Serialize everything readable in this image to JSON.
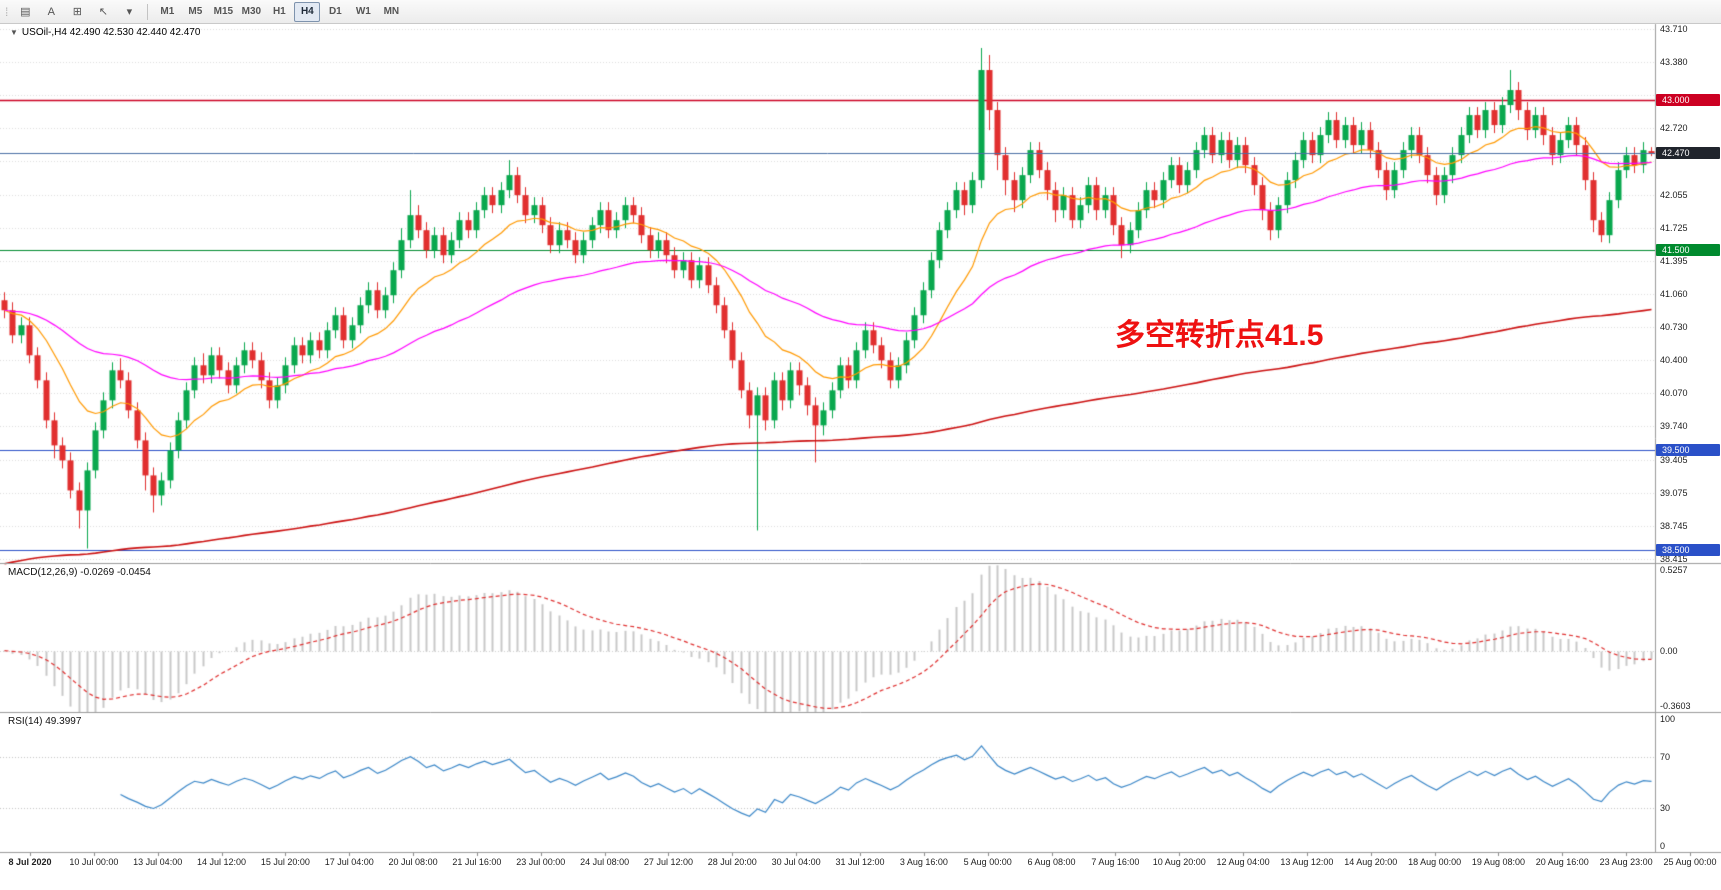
{
  "toolbar": {
    "grip_icon": "⁞",
    "tool_buttons": [
      {
        "name": "chart-type-icon",
        "glyph": "▤"
      },
      {
        "name": "text-annotation-icon",
        "glyph": "A"
      },
      {
        "name": "object-frame-icon",
        "glyph": "⊞"
      },
      {
        "name": "cursor-tool-icon",
        "glyph": "↖"
      },
      {
        "name": "tools-dropdown-icon",
        "glyph": "▾"
      }
    ],
    "timeframes": [
      {
        "label": "M1",
        "active": false
      },
      {
        "label": "M5",
        "active": false
      },
      {
        "label": "M15",
        "active": false
      },
      {
        "label": "M30",
        "active": false
      },
      {
        "label": "H1",
        "active": false
      },
      {
        "label": "H4",
        "active": true
      },
      {
        "label": "D1",
        "active": false
      },
      {
        "label": "W1",
        "active": false
      },
      {
        "label": "MN",
        "active": false
      }
    ]
  },
  "chart": {
    "collapse_arrow": "▼",
    "symbol_header": "USOil-,H4 42.490 42.530 42.440 42.470",
    "annotation": {
      "text": "多空转折点41.5",
      "color": "#ee1111"
    },
    "colors": {
      "bull": "#09a84e",
      "bear": "#e12f2f",
      "ma_fast": "#ff9900",
      "ma_mid": "#ff00ff",
      "ma_slow": "#cc1111",
      "grid": "#dcdcdc",
      "panel_border": "#9a9a9a",
      "axis_text": "#1c1c1c"
    },
    "y_axis": {
      "min": 38.375,
      "max": 43.76,
      "decimals": 3,
      "grid_ticks": [
        43.71,
        43.38,
        43.05,
        42.72,
        42.39,
        42.055,
        41.725,
        41.395,
        41.06,
        40.73,
        40.4,
        40.07,
        39.74,
        39.405,
        39.075,
        38.745,
        38.415
      ]
    },
    "hlines": [
      {
        "value": 43.0,
        "label": "43.000",
        "color": "#cc0022"
      },
      {
        "value": 41.5,
        "label": "41.500",
        "color": "#008a2e"
      },
      {
        "value": 39.5,
        "label": "39.500",
        "color": "#2a50c8"
      },
      {
        "value": 38.5,
        "label": "38.500",
        "color": "#2a50c8"
      }
    ],
    "current_price": {
      "value": 42.47,
      "label": "42.470",
      "line_color": "#4a6fa5",
      "badge_color": "#20242c"
    }
  },
  "chart_data": {
    "type": "candlestick",
    "symbol": "USOil-",
    "timeframe": "H4",
    "ohlc_readout": {
      "open": "42.490",
      "high": "42.530",
      "low": "42.440",
      "close": "42.470"
    },
    "overlays": [
      {
        "name": "ma-fast",
        "method": "ema",
        "period": 14,
        "color_key": "ma_fast"
      },
      {
        "name": "ma-mid",
        "method": "ema",
        "period": 50,
        "color_key": "ma_mid"
      },
      {
        "name": "ma-slow",
        "method": "ema_seeded",
        "alpha": 0.007,
        "seed": 38.35,
        "color_key": "ma_slow"
      }
    ],
    "candles": [
      [
        41.0,
        41.08,
        40.82,
        40.9
      ],
      [
        40.9,
        40.98,
        40.57,
        40.65
      ],
      [
        40.65,
        40.83,
        40.57,
        40.75
      ],
      [
        40.75,
        40.83,
        40.37,
        40.45
      ],
      [
        40.45,
        40.53,
        40.12,
        40.2
      ],
      [
        40.2,
        40.28,
        39.72,
        39.8
      ],
      [
        39.8,
        39.88,
        39.42,
        39.55
      ],
      [
        39.55,
        39.63,
        39.32,
        39.4
      ],
      [
        39.4,
        39.48,
        39.02,
        39.1
      ],
      [
        39.1,
        39.18,
        38.72,
        38.9
      ],
      [
        38.9,
        39.38,
        38.52,
        39.3
      ],
      [
        39.3,
        39.78,
        39.22,
        39.7
      ],
      [
        39.7,
        40.08,
        39.62,
        40.0
      ],
      [
        40.0,
        40.38,
        39.92,
        40.3
      ],
      [
        40.3,
        40.42,
        40.12,
        40.2
      ],
      [
        40.2,
        40.28,
        39.82,
        39.9
      ],
      [
        39.9,
        39.98,
        39.52,
        39.6
      ],
      [
        39.6,
        39.68,
        39.1,
        39.25
      ],
      [
        39.25,
        39.33,
        38.88,
        39.05
      ],
      [
        39.05,
        39.28,
        38.95,
        39.2
      ],
      [
        39.2,
        39.58,
        39.12,
        39.5
      ],
      [
        39.5,
        39.88,
        39.42,
        39.8
      ],
      [
        39.8,
        40.18,
        39.72,
        40.1
      ],
      [
        40.1,
        40.43,
        40.02,
        40.35
      ],
      [
        40.35,
        40.47,
        40.17,
        40.25
      ],
      [
        40.25,
        40.53,
        40.17,
        40.45
      ],
      [
        40.45,
        40.53,
        40.22,
        40.3
      ],
      [
        40.3,
        40.38,
        40.07,
        40.15
      ],
      [
        40.15,
        40.43,
        40.07,
        40.35
      ],
      [
        40.35,
        40.58,
        40.27,
        40.5
      ],
      [
        40.5,
        40.58,
        40.32,
        40.4
      ],
      [
        40.4,
        40.48,
        40.12,
        40.2
      ],
      [
        40.2,
        40.28,
        39.92,
        40.0
      ],
      [
        40.0,
        40.23,
        39.92,
        40.15
      ],
      [
        40.15,
        40.43,
        40.07,
        40.35
      ],
      [
        40.35,
        40.63,
        40.27,
        40.55
      ],
      [
        40.55,
        40.63,
        40.37,
        40.45
      ],
      [
        40.45,
        40.68,
        40.37,
        40.6
      ],
      [
        40.6,
        40.68,
        40.42,
        40.5
      ],
      [
        40.5,
        40.78,
        40.42,
        40.7
      ],
      [
        40.7,
        40.93,
        40.62,
        40.85
      ],
      [
        40.85,
        40.93,
        40.52,
        40.6
      ],
      [
        40.6,
        40.83,
        40.52,
        40.75
      ],
      [
        40.75,
        41.03,
        40.67,
        40.95
      ],
      [
        40.95,
        41.18,
        40.87,
        41.1
      ],
      [
        41.1,
        41.18,
        40.82,
        40.9
      ],
      [
        40.9,
        41.13,
        40.82,
        41.05
      ],
      [
        41.05,
        41.38,
        40.97,
        41.3
      ],
      [
        41.3,
        41.72,
        41.22,
        41.6
      ],
      [
        41.6,
        42.1,
        41.52,
        41.85
      ],
      [
        41.85,
        41.95,
        41.62,
        41.7
      ],
      [
        41.7,
        41.78,
        41.42,
        41.5
      ],
      [
        41.5,
        41.73,
        41.42,
        41.65
      ],
      [
        41.65,
        41.73,
        41.37,
        41.45
      ],
      [
        41.45,
        41.68,
        41.37,
        41.6
      ],
      [
        41.6,
        41.88,
        41.52,
        41.8
      ],
      [
        41.8,
        41.88,
        41.62,
        41.7
      ],
      [
        41.7,
        41.98,
        41.62,
        41.9
      ],
      [
        41.9,
        42.13,
        41.82,
        42.05
      ],
      [
        42.05,
        42.13,
        41.87,
        41.95
      ],
      [
        41.95,
        42.18,
        41.87,
        42.1
      ],
      [
        42.1,
        42.4,
        42.02,
        42.25
      ],
      [
        42.25,
        42.33,
        41.97,
        42.05
      ],
      [
        42.05,
        42.13,
        41.77,
        41.85
      ],
      [
        41.85,
        42.03,
        41.77,
        41.95
      ],
      [
        41.95,
        42.03,
        41.67,
        41.75
      ],
      [
        41.75,
        41.83,
        41.47,
        41.55
      ],
      [
        41.55,
        41.78,
        41.47,
        41.7
      ],
      [
        41.7,
        41.78,
        41.52,
        41.6
      ],
      [
        41.6,
        41.68,
        41.37,
        41.45
      ],
      [
        41.45,
        41.68,
        41.37,
        41.6
      ],
      [
        41.6,
        41.83,
        41.52,
        41.75
      ],
      [
        41.75,
        41.98,
        41.67,
        41.9
      ],
      [
        41.9,
        41.98,
        41.62,
        41.7
      ],
      [
        41.7,
        41.88,
        41.62,
        41.8
      ],
      [
        41.8,
        42.03,
        41.72,
        41.95
      ],
      [
        41.95,
        42.03,
        41.77,
        41.85
      ],
      [
        41.85,
        41.93,
        41.57,
        41.65
      ],
      [
        41.65,
        41.73,
        41.42,
        41.5
      ],
      [
        41.5,
        41.68,
        41.42,
        41.6
      ],
      [
        41.6,
        41.68,
        41.37,
        41.45
      ],
      [
        41.45,
        41.53,
        41.22,
        41.3
      ],
      [
        41.3,
        41.48,
        41.22,
        41.4
      ],
      [
        41.4,
        41.48,
        41.12,
        41.2
      ],
      [
        41.2,
        41.43,
        41.12,
        41.35
      ],
      [
        41.35,
        41.43,
        41.07,
        41.15
      ],
      [
        41.15,
        41.23,
        40.87,
        40.95
      ],
      [
        40.95,
        41.03,
        40.62,
        40.7
      ],
      [
        40.7,
        40.78,
        40.32,
        40.4
      ],
      [
        40.4,
        40.48,
        40.02,
        40.1
      ],
      [
        40.1,
        40.18,
        39.72,
        39.85
      ],
      [
        39.85,
        40.13,
        38.7,
        40.05
      ],
      [
        40.05,
        40.13,
        39.7,
        39.8
      ],
      [
        39.8,
        40.28,
        39.72,
        40.2
      ],
      [
        40.2,
        40.28,
        39.9,
        40.0
      ],
      [
        40.0,
        40.38,
        39.92,
        40.3
      ],
      [
        40.3,
        40.38,
        40.05,
        40.15
      ],
      [
        40.15,
        40.23,
        39.85,
        39.95
      ],
      [
        39.95,
        40.03,
        39.38,
        39.75
      ],
      [
        39.75,
        39.98,
        39.65,
        39.9
      ],
      [
        39.9,
        40.18,
        39.82,
        40.1
      ],
      [
        40.1,
        40.43,
        40.02,
        40.35
      ],
      [
        40.35,
        40.43,
        40.12,
        40.2
      ],
      [
        40.2,
        40.58,
        40.12,
        40.5
      ],
      [
        40.5,
        40.78,
        40.42,
        40.7
      ],
      [
        40.7,
        40.78,
        40.47,
        40.55
      ],
      [
        40.55,
        40.63,
        40.32,
        40.4
      ],
      [
        40.4,
        40.48,
        40.12,
        40.2
      ],
      [
        40.2,
        40.43,
        40.12,
        40.35
      ],
      [
        40.35,
        40.68,
        40.27,
        40.6
      ],
      [
        40.6,
        40.93,
        40.52,
        40.85
      ],
      [
        40.85,
        41.18,
        40.77,
        41.1
      ],
      [
        41.1,
        41.48,
        41.02,
        41.4
      ],
      [
        41.4,
        41.78,
        41.32,
        41.7
      ],
      [
        41.7,
        41.98,
        41.62,
        41.9
      ],
      [
        41.9,
        42.18,
        41.82,
        42.1
      ],
      [
        42.1,
        42.18,
        41.85,
        41.95
      ],
      [
        41.95,
        42.28,
        41.87,
        42.2
      ],
      [
        42.2,
        43.52,
        42.12,
        43.3
      ],
      [
        43.3,
        43.45,
        42.7,
        42.9
      ],
      [
        42.9,
        42.98,
        42.3,
        42.45
      ],
      [
        42.45,
        42.53,
        42.05,
        42.2
      ],
      [
        42.2,
        42.28,
        41.88,
        42.0
      ],
      [
        42.0,
        42.33,
        41.92,
        42.25
      ],
      [
        42.25,
        42.58,
        42.17,
        42.5
      ],
      [
        42.5,
        42.58,
        42.22,
        42.3
      ],
      [
        42.3,
        42.38,
        42.0,
        42.1
      ],
      [
        42.1,
        42.18,
        41.78,
        41.9
      ],
      [
        41.9,
        42.13,
        41.82,
        42.05
      ],
      [
        42.05,
        42.13,
        41.72,
        41.8
      ],
      [
        41.8,
        42.03,
        41.72,
        41.95
      ],
      [
        41.95,
        42.23,
        41.87,
        42.15
      ],
      [
        42.15,
        42.23,
        41.8,
        41.9
      ],
      [
        41.9,
        42.13,
        41.82,
        42.05
      ],
      [
        42.05,
        42.13,
        41.65,
        41.75
      ],
      [
        41.75,
        41.83,
        41.42,
        41.55
      ],
      [
        41.55,
        41.78,
        41.47,
        41.7
      ],
      [
        41.7,
        41.98,
        41.62,
        41.9
      ],
      [
        41.9,
        42.18,
        41.82,
        42.1
      ],
      [
        42.1,
        42.18,
        41.92,
        42.0
      ],
      [
        42.0,
        42.28,
        41.92,
        42.2
      ],
      [
        42.2,
        42.43,
        42.12,
        42.35
      ],
      [
        42.35,
        42.43,
        42.07,
        42.15
      ],
      [
        42.15,
        42.38,
        42.07,
        42.3
      ],
      [
        42.3,
        42.58,
        42.22,
        42.5
      ],
      [
        42.5,
        42.73,
        42.42,
        42.65
      ],
      [
        42.65,
        42.73,
        42.37,
        42.45
      ],
      [
        42.45,
        42.68,
        42.37,
        42.6
      ],
      [
        42.6,
        42.68,
        42.32,
        42.4
      ],
      [
        42.4,
        42.63,
        42.32,
        42.55
      ],
      [
        42.55,
        42.63,
        42.27,
        42.35
      ],
      [
        42.35,
        42.43,
        42.05,
        42.15
      ],
      [
        42.15,
        42.23,
        41.8,
        41.9
      ],
      [
        41.9,
        41.98,
        41.6,
        41.7
      ],
      [
        41.7,
        42.03,
        41.62,
        41.95
      ],
      [
        41.95,
        42.28,
        41.87,
        42.2
      ],
      [
        42.2,
        42.48,
        42.12,
        42.4
      ],
      [
        42.4,
        42.68,
        42.32,
        42.6
      ],
      [
        42.6,
        42.68,
        42.37,
        42.45
      ],
      [
        42.45,
        42.73,
        42.37,
        42.65
      ],
      [
        42.65,
        42.88,
        42.57,
        42.8
      ],
      [
        42.8,
        42.88,
        42.52,
        42.6
      ],
      [
        42.6,
        42.83,
        42.52,
        42.75
      ],
      [
        42.75,
        42.83,
        42.47,
        42.55
      ],
      [
        42.55,
        42.78,
        42.47,
        42.7
      ],
      [
        42.7,
        42.78,
        42.42,
        42.5
      ],
      [
        42.5,
        42.58,
        42.22,
        42.3
      ],
      [
        42.3,
        42.38,
        42.0,
        42.1
      ],
      [
        42.1,
        42.38,
        42.02,
        42.3
      ],
      [
        42.3,
        42.58,
        42.22,
        42.5
      ],
      [
        42.5,
        42.73,
        42.42,
        42.65
      ],
      [
        42.65,
        42.73,
        42.37,
        42.45
      ],
      [
        42.45,
        42.53,
        42.17,
        42.25
      ],
      [
        42.25,
        42.33,
        41.95,
        42.05
      ],
      [
        42.05,
        42.33,
        41.97,
        42.25
      ],
      [
        42.25,
        42.53,
        42.17,
        42.45
      ],
      [
        42.45,
        42.73,
        42.37,
        42.65
      ],
      [
        42.65,
        42.93,
        42.57,
        42.85
      ],
      [
        42.85,
        42.93,
        42.62,
        42.7
      ],
      [
        42.7,
        42.98,
        42.62,
        42.9
      ],
      [
        42.9,
        42.98,
        42.67,
        42.75
      ],
      [
        42.75,
        43.03,
        42.67,
        42.95
      ],
      [
        42.95,
        43.3,
        42.87,
        43.1
      ],
      [
        43.1,
        43.18,
        42.8,
        42.9
      ],
      [
        42.9,
        42.98,
        42.6,
        42.7
      ],
      [
        42.7,
        42.93,
        42.62,
        42.85
      ],
      [
        42.85,
        42.93,
        42.55,
        42.65
      ],
      [
        42.65,
        42.73,
        42.35,
        42.45
      ],
      [
        42.45,
        42.68,
        42.37,
        42.6
      ],
      [
        42.6,
        42.83,
        42.52,
        42.75
      ],
      [
        42.75,
        42.83,
        42.45,
        42.55
      ],
      [
        42.55,
        42.63,
        42.1,
        42.2
      ],
      [
        42.2,
        42.28,
        41.68,
        41.8
      ],
      [
        41.8,
        41.88,
        41.58,
        41.65
      ],
      [
        41.65,
        42.08,
        41.57,
        42.0
      ],
      [
        42.0,
        42.38,
        41.92,
        42.3
      ],
      [
        42.3,
        42.53,
        42.22,
        42.45
      ],
      [
        42.45,
        42.53,
        42.27,
        42.35
      ],
      [
        42.35,
        42.58,
        42.27,
        42.5
      ],
      [
        42.49,
        42.53,
        42.44,
        42.47
      ]
    ]
  },
  "indicators": {
    "macd": {
      "label": "MACD(12,26,9) -0.0269 -0.0454",
      "fast": 12,
      "slow": 26,
      "signal": 9,
      "scale_max": 0.5257,
      "scale_min": -0.3603,
      "axis_labels": [
        "0.5257",
        "0.00",
        "-0.3603"
      ],
      "hist_color": "#c8c8c8",
      "signal_color": "#e03131"
    },
    "rsi": {
      "label": "RSI(14) 49.3997",
      "period": 14,
      "levels": [
        70,
        30
      ],
      "scale_max": 100,
      "scale_min": 0,
      "axis_labels": [
        "100",
        "70",
        "30",
        "0"
      ],
      "line_color": "#3b87c8",
      "level_color": "#c4c4c4"
    }
  },
  "time_axis": {
    "labels": [
      "8 Jul 2020",
      "10 Jul 00:00",
      "13 Jul 04:00",
      "14 Jul 12:00",
      "15 Jul 20:00",
      "17 Jul 04:00",
      "20 Jul 08:00",
      "21 Jul 16:00",
      "23 Jul 00:00",
      "24 Jul 08:00",
      "27 Jul 12:00",
      "28 Jul 20:00",
      "30 Jul 04:00",
      "31 Jul 12:00",
      "3 Aug 16:00",
      "5 Aug 00:00",
      "6 Aug 08:00",
      "7 Aug 16:00",
      "10 Aug 20:00",
      "12 Aug 04:00",
      "13 Aug 12:00",
      "14 Aug 20:00",
      "18 Aug 00:00",
      "19 Aug 08:00",
      "20 Aug 16:00",
      "23 Aug 23:00",
      "25 Aug 00:00"
    ]
  }
}
